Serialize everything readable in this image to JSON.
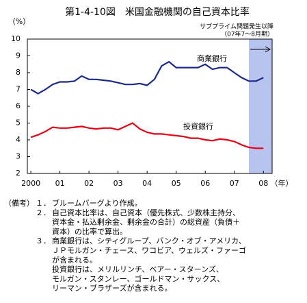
{
  "chart_data": {
    "type": "line",
    "title": "第1-4-10図　米国金融機関の自己資本比率",
    "y_unit": "（%）",
    "x_unit": "（年）",
    "x": [
      2000,
      2000.25,
      2000.5,
      2000.75,
      2001,
      2001.25,
      2001.5,
      2001.75,
      2002,
      2002.25,
      2002.5,
      2002.75,
      2003,
      2003.25,
      2003.5,
      2003.75,
      2004,
      2004.25,
      2004.5,
      2004.75,
      2005,
      2005.25,
      2005.5,
      2005.75,
      2006,
      2006.25,
      2006.5,
      2006.75,
      2007,
      2007.25,
      2007.5,
      2007.75,
      2008
    ],
    "series": [
      {
        "name": "商業銀行",
        "color": "#1c2a8c",
        "values": [
          7.0,
          6.75,
          7.0,
          7.3,
          7.45,
          7.45,
          7.5,
          7.8,
          7.6,
          7.6,
          7.55,
          7.5,
          7.4,
          7.3,
          7.3,
          7.35,
          7.25,
          7.6,
          8.4,
          8.65,
          8.3,
          8.3,
          8.3,
          8.3,
          8.5,
          8.2,
          8.3,
          8.3,
          8.0,
          7.7,
          7.5,
          7.5,
          7.7
        ]
      },
      {
        "name": "投資銀行",
        "color": "#e60012",
        "values": [
          4.15,
          4.3,
          4.5,
          4.75,
          4.7,
          4.7,
          4.75,
          4.8,
          4.7,
          4.65,
          4.7,
          4.7,
          4.6,
          4.8,
          5.0,
          4.65,
          4.45,
          4.35,
          4.35,
          4.3,
          4.25,
          4.2,
          4.1,
          4.1,
          4.0,
          3.95,
          4.05,
          4.0,
          3.9,
          3.7,
          3.55,
          3.5,
          3.5
        ]
      }
    ],
    "xlim": [
      1999.88,
      2008.3
    ],
    "xticks": [
      {
        "value": 2000,
        "label": "2000"
      },
      {
        "value": 2001,
        "label": "01"
      },
      {
        "value": 2002,
        "label": "02"
      },
      {
        "value": 2003,
        "label": "03"
      },
      {
        "value": 2004,
        "label": "04"
      },
      {
        "value": 2005,
        "label": "05"
      },
      {
        "value": 2006,
        "label": "06"
      },
      {
        "value": 2007,
        "label": "07"
      },
      {
        "value": 2008,
        "label": "08"
      }
    ],
    "ylim": [
      2,
      10
    ],
    "yticks": [
      2,
      3,
      4,
      5,
      6,
      7,
      8,
      9,
      10
    ],
    "highlight": {
      "range": [
        2007.5,
        2008.3
      ],
      "color": "#b8c4f0",
      "label": "サブプライム問題発生以降",
      "sublabel": "（07年7～8月期）"
    }
  },
  "notes": {
    "label": "（備考）",
    "items": [
      {
        "num": "１．",
        "lines": [
          "ブルームバーグより作成。"
        ]
      },
      {
        "num": "２．",
        "lines": [
          "自己資本比率は、自己資本（優先株式、少数株主持分、",
          "資本金・払込剰余金、剰余金の合計）の総資産（負債＋",
          "資本）の比率で算出。"
        ]
      },
      {
        "num": "３．",
        "lines": [
          "商業銀行は、シティグループ、バンク・オブ・アメリカ、",
          "ＪＰモルガン・チェース、ワコビア、ウェルズ・ファーゴ",
          "が含まれる。",
          "投資銀行は、メリルリンチ、ベアー・スターンズ、",
          "モルガン・スタンレー、ゴールドマン・サックス、",
          "リーマン・ブラザーズが含まれる。"
        ]
      }
    ]
  }
}
